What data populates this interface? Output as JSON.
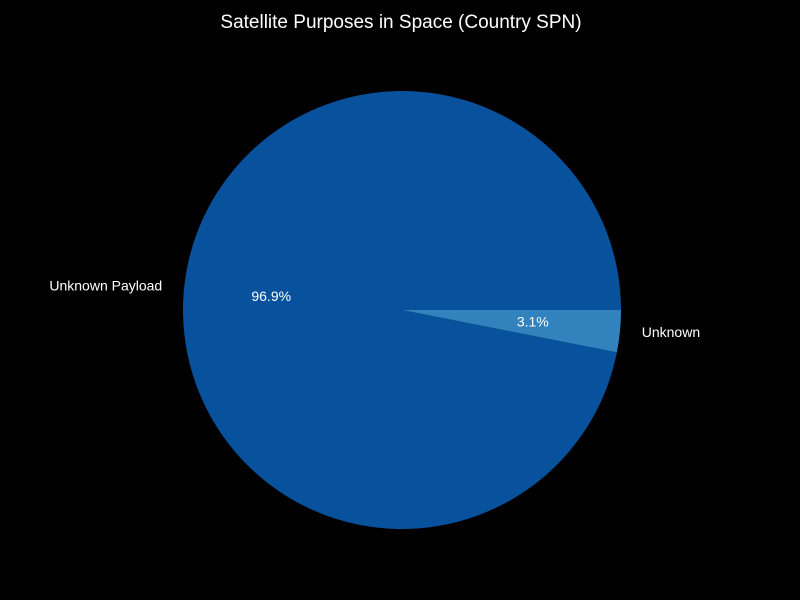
{
  "chart_data": {
    "type": "pie",
    "title": "Satellite Purposes in Space (Country SPN)",
    "categories": [
      "Unknown Payload",
      "Unknown"
    ],
    "values": [
      96.9,
      3.1
    ],
    "value_labels": [
      "96.9%",
      "3.1%"
    ],
    "colors": [
      "#08519c",
      "#3182bd"
    ],
    "start_angle_deg": 0,
    "direction": "counterclockwise",
    "legend": "none"
  },
  "colors": {
    "background": "#000000",
    "text": "#ffffff"
  }
}
